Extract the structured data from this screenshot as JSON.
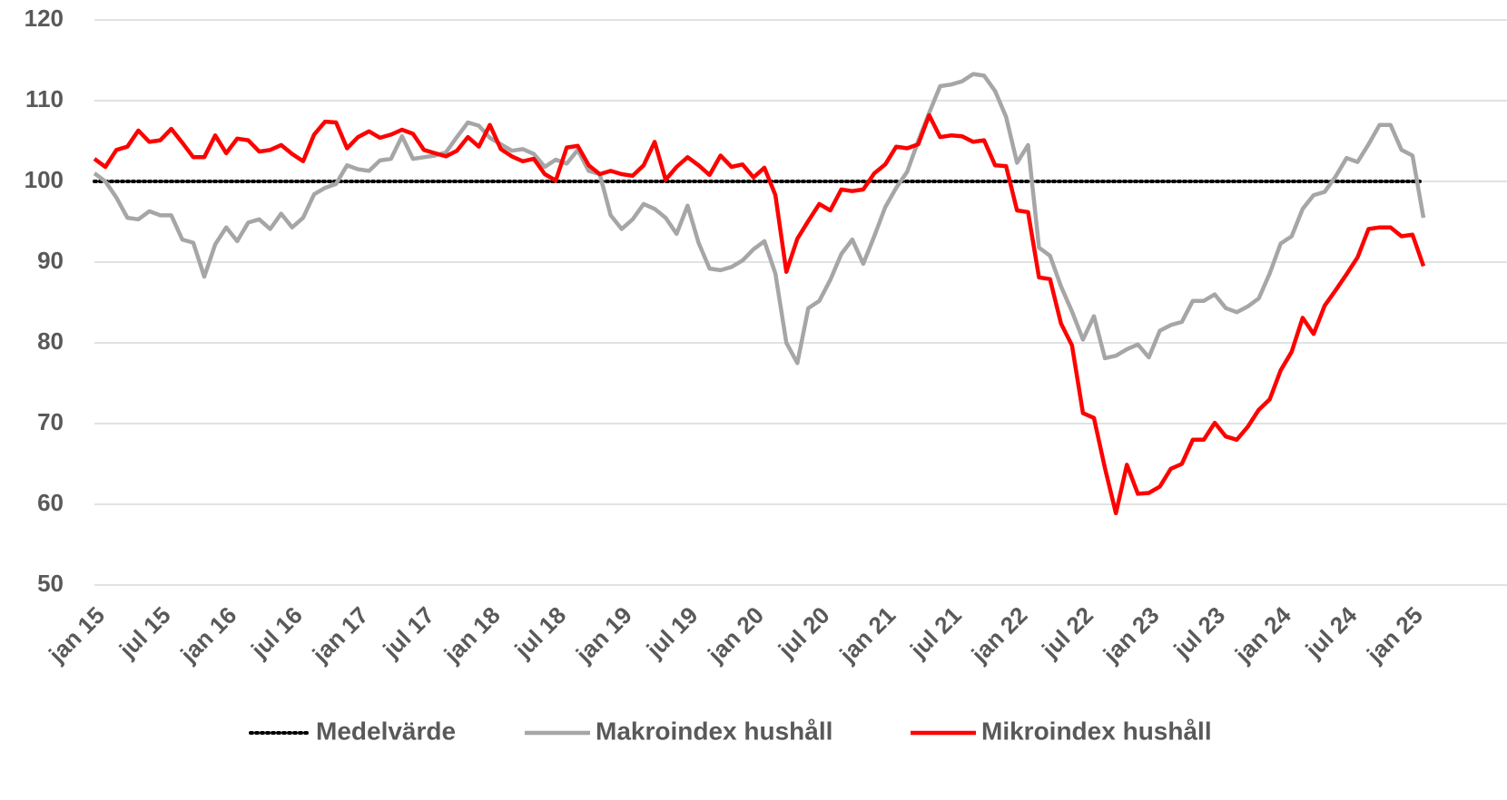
{
  "chart_data": {
    "type": "line",
    "categories": [
      "jan 15",
      null,
      null,
      null,
      null,
      null,
      "jul 15",
      null,
      null,
      null,
      null,
      null,
      "jan 16",
      null,
      null,
      null,
      null,
      null,
      "jul 16",
      null,
      null,
      null,
      null,
      null,
      "jan 17",
      null,
      null,
      null,
      null,
      null,
      "jul 17",
      null,
      null,
      null,
      null,
      null,
      "jan 18",
      null,
      null,
      null,
      null,
      null,
      "jul 18",
      null,
      null,
      null,
      null,
      null,
      "jan 19",
      null,
      null,
      null,
      null,
      null,
      "jul 19",
      null,
      null,
      null,
      null,
      null,
      "jan 20",
      null,
      null,
      null,
      null,
      null,
      "jul 20",
      null,
      null,
      null,
      null,
      null,
      "jan 21",
      null,
      null,
      null,
      null,
      null,
      "jul 21",
      null,
      null,
      null,
      null,
      null,
      "jan 22",
      null,
      null,
      null,
      null,
      null,
      "jul 22",
      null,
      null,
      null,
      null,
      null,
      "jan 23",
      null,
      null,
      null,
      null,
      null,
      "jul 23",
      null,
      null,
      null,
      null,
      null,
      "jan 24",
      null,
      null,
      null,
      null,
      null,
      "jul 24",
      null,
      null,
      null,
      null,
      null,
      "jan 25",
      null
    ],
    "series": [
      {
        "name": "Makroindex hushåll",
        "color": "#a6a6a6",
        "values": [
          101,
          100,
          98,
          95.5,
          95.3,
          96.3,
          95.8,
          95.8,
          92.8,
          92.4,
          88.2,
          92.2,
          94.3,
          92.6,
          94.9,
          95.3,
          94.1,
          96,
          94.3,
          95.5,
          98.4,
          99.2,
          99.7,
          102,
          101.5,
          101.3,
          102.6,
          102.8,
          105.6,
          102.8,
          103,
          103.2,
          103.6,
          105.5,
          107.3,
          106.9,
          105.4,
          104.6,
          103.8,
          104,
          103.4,
          101.8,
          102.7,
          102.2,
          103.9,
          101.3,
          100.9,
          95.8,
          94.1,
          95.3,
          97.2,
          96.6,
          95.5,
          93.5,
          97,
          92.4,
          89.2,
          89,
          89.4,
          90.2,
          91.6,
          92.6,
          88.6,
          80,
          77.5,
          84.3,
          85.2,
          87.8,
          91,
          92.8,
          89.8,
          93.2,
          96.8,
          99.2,
          101.2,
          105,
          108.5,
          111.8,
          112,
          112.4,
          113.3,
          113.1,
          111.2,
          108,
          102.3,
          104.5,
          91.8,
          90.8,
          87,
          83.9,
          80.4,
          83.3,
          78.1,
          78.4,
          79.2,
          79.8,
          78.2,
          81.5,
          82.2,
          82.6,
          85.2,
          85.2,
          86,
          84.3,
          83.8,
          84.5,
          85.5,
          88.6,
          92.3,
          93.2,
          96.6,
          98.3,
          98.7,
          100.6,
          102.9,
          102.4,
          104.6,
          107,
          107,
          103.9,
          103.2,
          95.5
        ]
      },
      {
        "name": "Mikroindex hushåll",
        "color": "#ff0000",
        "values": [
          102.8,
          101.8,
          103.9,
          104.3,
          106.3,
          104.9,
          105.1,
          106.5,
          104.8,
          103,
          103,
          105.7,
          103.5,
          105.3,
          105.1,
          103.7,
          103.9,
          104.5,
          103.4,
          102.5,
          105.8,
          107.4,
          107.3,
          104.1,
          105.5,
          106.2,
          105.4,
          105.8,
          106.4,
          105.9,
          103.9,
          103.5,
          103.1,
          103.8,
          105.5,
          104.3,
          107,
          104,
          103.1,
          102.5,
          102.8,
          100.9,
          100.1,
          104.2,
          104.4,
          102,
          100.9,
          101.3,
          100.9,
          100.7,
          102,
          104.9,
          100.2,
          101.8,
          103,
          102,
          100.8,
          103.2,
          101.8,
          102.1,
          100.5,
          101.7,
          98.3,
          88.8,
          92.9,
          95.1,
          97.2,
          96.4,
          99,
          98.8,
          99,
          101,
          102.1,
          104.3,
          104.1,
          104.6,
          108.2,
          105.5,
          105.7,
          105.6,
          104.9,
          105.1,
          102,
          101.9,
          96.4,
          96.2,
          88.1,
          87.9,
          82.4,
          79.7,
          71.3,
          70.7,
          64.5,
          58.9,
          64.9,
          61.3,
          61.4,
          62.2,
          64.4,
          65,
          68,
          68,
          70.1,
          68.4,
          68,
          69.6,
          71.7,
          73,
          76.6,
          78.9,
          83.1,
          81.1,
          84.6,
          86.5,
          88.5,
          90.6,
          94.1,
          94.3,
          94.3,
          93.2,
          93.4,
          89.5
        ]
      }
    ],
    "reference_lines": [
      {
        "name": "Medelvärde",
        "value": 100,
        "color": "#000000"
      }
    ],
    "ylim": [
      50,
      120
    ],
    "yticks": [
      50,
      60,
      70,
      80,
      90,
      100,
      110,
      120
    ],
    "grid": true,
    "legend": "bottom"
  }
}
